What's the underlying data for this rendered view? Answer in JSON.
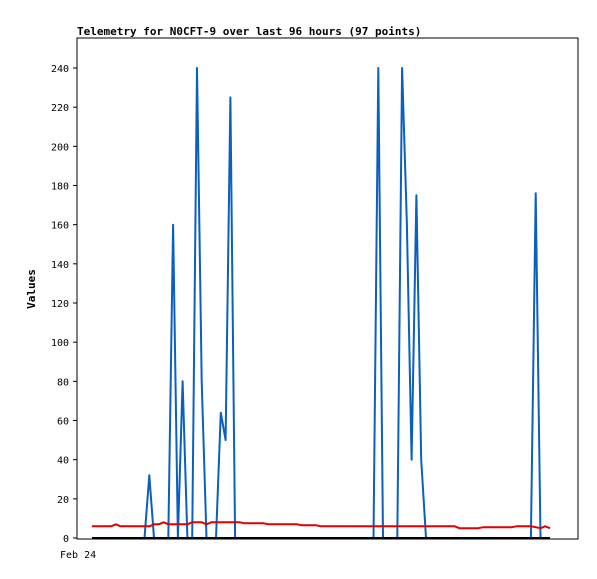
{
  "chart_data": {
    "type": "line",
    "title": "Telemetry for N0CFT-9 over last 96 hours (97 points)",
    "xlabel": "",
    "ylabel": "Values",
    "x_tick_labels": [
      "Feb 24"
    ],
    "ylim": [
      0,
      250
    ],
    "y_ticks": [
      0,
      20,
      40,
      60,
      80,
      100,
      120,
      140,
      160,
      180,
      200,
      220,
      240
    ],
    "grid": false,
    "x": [
      0,
      1,
      2,
      3,
      4,
      5,
      6,
      7,
      8,
      9,
      10,
      11,
      12,
      13,
      14,
      15,
      16,
      17,
      18,
      19,
      20,
      21,
      22,
      23,
      24,
      25,
      26,
      27,
      28,
      29,
      30,
      31,
      32,
      33,
      34,
      35,
      36,
      37,
      38,
      39,
      40,
      41,
      42,
      43,
      44,
      45,
      46,
      47,
      48,
      49,
      50,
      51,
      52,
      53,
      54,
      55,
      56,
      57,
      58,
      59,
      60,
      61,
      62,
      63,
      64,
      65,
      66,
      67,
      68,
      69,
      70,
      71,
      72,
      73,
      74,
      75,
      76,
      77,
      78,
      79,
      80,
      81,
      82,
      83,
      84,
      85,
      86,
      87,
      88,
      89,
      90,
      91,
      92,
      93,
      94,
      95,
      96
    ],
    "series": [
      {
        "color": "#0a5fbf",
        "values": [
          0,
          0,
          0,
          0,
          0,
          0,
          0,
          0,
          0,
          0,
          0,
          0,
          32,
          0,
          0,
          0,
          0,
          160,
          0,
          80,
          0,
          0,
          240,
          80,
          0,
          0,
          0,
          64,
          50,
          225,
          0,
          0,
          0,
          0,
          0,
          0,
          0,
          0,
          0,
          0,
          0,
          0,
          0,
          0,
          0,
          0,
          0,
          0,
          0,
          0,
          0,
          0,
          0,
          0,
          0,
          0,
          0,
          0,
          0,
          0,
          240,
          0,
          0,
          0,
          0,
          240,
          160,
          40,
          175,
          40,
          0,
          0,
          0,
          0,
          0,
          0,
          0,
          0,
          0,
          0,
          0,
          0,
          0,
          0,
          0,
          0,
          0,
          0,
          0,
          0,
          0,
          0,
          0,
          176,
          0,
          0,
          0
        ]
      },
      {
        "color": "#e00000",
        "values": [
          6,
          6,
          6,
          6,
          6,
          7,
          6,
          6,
          6,
          6,
          6,
          6,
          6,
          7,
          7,
          8,
          7,
          7,
          7,
          7,
          7,
          8,
          8,
          8,
          7,
          8,
          8,
          8,
          8,
          8,
          8,
          8,
          7.5,
          7.5,
          7.5,
          7.5,
          7.5,
          7,
          7,
          7,
          7,
          7,
          7,
          7,
          6.5,
          6.5,
          6.5,
          6.5,
          6,
          6,
          6,
          6,
          6,
          6,
          6,
          6,
          6,
          6,
          6,
          6,
          6,
          6,
          6,
          6,
          6,
          6,
          6,
          6,
          6,
          6,
          6,
          6,
          6,
          6,
          6,
          6,
          6,
          5,
          5,
          5,
          5,
          5,
          5.5,
          5.5,
          5.5,
          5.5,
          5.5,
          5.5,
          5.5,
          6,
          6,
          6,
          6,
          5.5,
          5,
          6,
          5
        ]
      },
      {
        "color": "#000000",
        "values": [
          0,
          0,
          0,
          0,
          0,
          0,
          0,
          0,
          0,
          0,
          0,
          0,
          0,
          0,
          0,
          0,
          0,
          0,
          0,
          0,
          0,
          0,
          0,
          0,
          0,
          0,
          0,
          0,
          0,
          0,
          0,
          0,
          0,
          0,
          0,
          0,
          0,
          0,
          0,
          0,
          0,
          0,
          0,
          0,
          0,
          0,
          0,
          0,
          0,
          0,
          0,
          0,
          0,
          0,
          0,
          0,
          0,
          0,
          0,
          0,
          0,
          0,
          0,
          0,
          0,
          0,
          0,
          0,
          0,
          0,
          0,
          0,
          0,
          0,
          0,
          0,
          0,
          0,
          0,
          0,
          0,
          0,
          0,
          0,
          0,
          0,
          0,
          0,
          0,
          0,
          0,
          0,
          0,
          0,
          0,
          0,
          0
        ]
      }
    ]
  }
}
